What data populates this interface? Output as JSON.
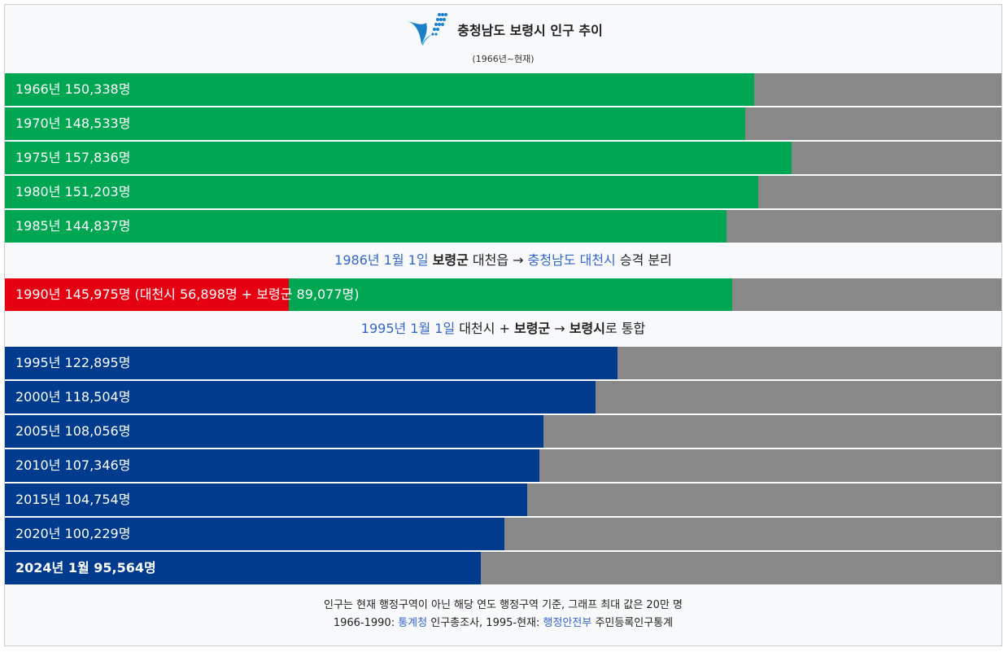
{
  "header": {
    "title": "충청남도 보령시 인구 추이",
    "subtitle": "(1966년~현재)",
    "logo_icon": "boryeong-city-logo"
  },
  "colors": {
    "green": "#00a651",
    "blue": "#003b8e",
    "red": "#e50012",
    "remainder": "#888888",
    "link": "#3366cc"
  },
  "chart_data": {
    "type": "bar",
    "orientation": "horizontal",
    "title": "충청남도 보령시 인구 추이",
    "subtitle": "(1966년~현재)",
    "xlim": [
      0,
      200000
    ],
    "unit": "명",
    "categories": [
      "1966년",
      "1970년",
      "1975년",
      "1980년",
      "1985년",
      "1990년",
      "1995년",
      "2000년",
      "2005년",
      "2010년",
      "2015년",
      "2020년",
      "2024년 1월"
    ],
    "values": [
      150338,
      148533,
      157836,
      151203,
      144837,
      145975,
      122895,
      118504,
      108056,
      107346,
      104754,
      100229,
      95564
    ],
    "labels": [
      "1966년 150,338명",
      "1970년 148,533명",
      "1975년 157,836명",
      "1980년 151,203명",
      "1985년 144,837명",
      "1990년 145,975명 (대천시 56,898명 + 보령군 89,077명)",
      "1995년 122,895명",
      "2000년 118,504명",
      "2005년 108,056명",
      "2010년 107,346명",
      "2015년 104,754명",
      "2020년 100,229명",
      "2024년 1월 95,564명"
    ],
    "segments_1990": [
      {
        "name": "대천시",
        "value": 56898,
        "color": "#e50012"
      },
      {
        "name": "보령군",
        "value": 89077,
        "color": "#00a651"
      }
    ],
    "annotations": [
      {
        "after": "1985년",
        "parts": [
          {
            "text": "1986년 1월 1일",
            "style": "link"
          },
          {
            "text": " ",
            "style": "plain"
          },
          {
            "text": "보령군",
            "style": "bold"
          },
          {
            "text": " 대천읍 → ",
            "style": "plain"
          },
          {
            "text": "충청남도 대천시",
            "style": "link"
          },
          {
            "text": " 승격 분리",
            "style": "plain"
          }
        ]
      },
      {
        "after": "1990년",
        "parts": [
          {
            "text": "1995년 1월 1일",
            "style": "link"
          },
          {
            "text": " 대천시 + ",
            "style": "plain"
          },
          {
            "text": "보령군",
            "style": "bold"
          },
          {
            "text": " → ",
            "style": "plain"
          },
          {
            "text": "보령시",
            "style": "bold"
          },
          {
            "text": "로 통합",
            "style": "plain"
          }
        ]
      }
    ]
  },
  "footer": {
    "line1": "인구는 현재 행정구역이 아닌 해당 연도 행정구역 기준, 그래프 최대 값은 20만 명",
    "line2_prefix": "1966-1990: ",
    "line2_link1": "통계청",
    "line2_mid": " 인구총조사, 1995-현재: ",
    "line2_link2": "행정안전부",
    "line2_suffix": " 주민등록인구통계"
  }
}
